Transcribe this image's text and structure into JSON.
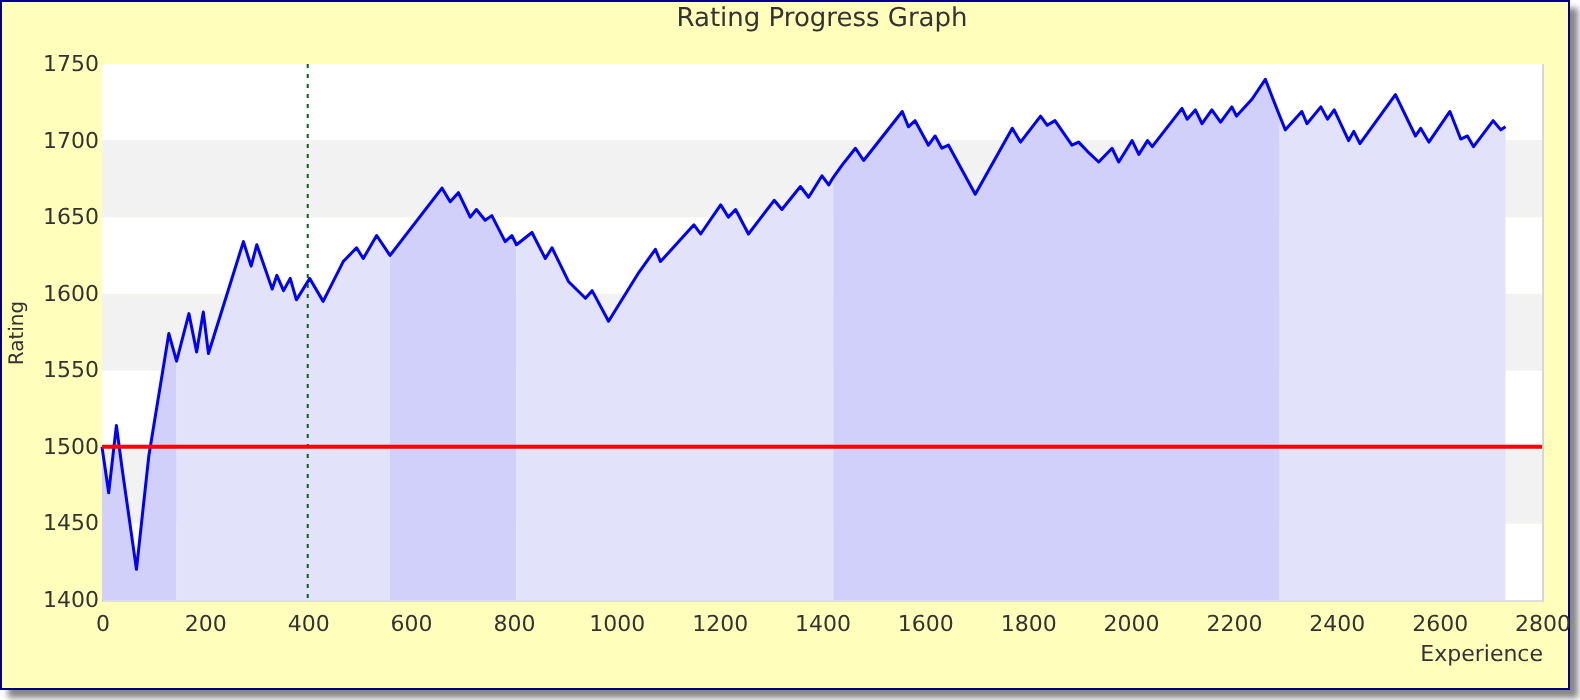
{
  "chart_data": {
    "type": "line",
    "title": "Rating Progress Graph",
    "xlabel": "Experience",
    "ylabel": "Rating",
    "xlim": [
      0,
      2800
    ],
    "xticks": [
      0,
      200,
      400,
      600,
      800,
      1000,
      1200,
      1400,
      1600,
      1800,
      2000,
      2200,
      2400,
      2600,
      2800
    ],
    "ylim": [
      1400,
      1750
    ],
    "yticks": [
      1400,
      1450,
      1500,
      1550,
      1600,
      1650,
      1700,
      1750
    ],
    "grid": "y",
    "series": [
      {
        "type": "area",
        "color": "#d0d0fa",
        "x": [
          0,
          13,
          28,
          39,
          67,
          91,
          130,
          145
        ],
        "values": [
          1500,
          1470,
          1514,
          1486,
          1420,
          1494,
          1574,
          1556
        ]
      },
      {
        "type": "area",
        "color": "#e2e2fa",
        "x": [
          145,
          169,
          184,
          197,
          207,
          275,
          290,
          301,
          331,
          340,
          353,
          366,
          378,
          404,
          430,
          469,
          495,
          508,
          534,
          560
        ],
        "values": [
          1556,
          1587,
          1562,
          1588,
          1561,
          1634,
          1618,
          1632,
          1603,
          1612,
          1602,
          1610,
          1596,
          1610,
          1595,
          1621,
          1630,
          1623,
          1638,
          1625
        ]
      },
      {
        "type": "area",
        "color": "#d0d0fa",
        "x": [
          560,
          661,
          677,
          693,
          716,
          728,
          745,
          758,
          784,
          797,
          806
        ],
        "values": [
          1625,
          1669,
          1660,
          1666,
          1650,
          1655,
          1648,
          1651,
          1634,
          1638,
          1632
        ]
      },
      {
        "type": "area",
        "color": "#e2e2fa",
        "x": [
          806,
          836,
          862,
          875,
          907,
          940,
          953,
          985,
          1044,
          1076,
          1086,
          1151,
          1164,
          1203,
          1218,
          1232,
          1257,
          1307,
          1322,
          1358,
          1374,
          1400,
          1413,
          1422
        ],
        "values": [
          1632,
          1640,
          1623,
          1630,
          1608,
          1597,
          1602,
          1582,
          1614,
          1629,
          1621,
          1645,
          1639,
          1658,
          1650,
          1655,
          1639,
          1661,
          1655,
          1670,
          1663,
          1677,
          1671,
          1676
        ]
      },
      {
        "type": "area",
        "color": "#d0d0fa",
        "x": [
          1422,
          1439,
          1465,
          1481,
          1556,
          1568,
          1581,
          1607,
          1620,
          1633,
          1646,
          1698,
          1770,
          1786,
          1825,
          1838,
          1853,
          1886,
          1899,
          1916,
          1938,
          1964,
          1977,
          2003,
          2016,
          2033,
          2042,
          2100,
          2110,
          2126,
          2139,
          2158,
          2175,
          2197,
          2206,
          2236,
          2262,
          2290
        ],
        "values": [
          1676,
          1684,
          1695,
          1687,
          1719,
          1709,
          1713,
          1697,
          1703,
          1695,
          1697,
          1665,
          1708,
          1699,
          1716,
          1710,
          1713,
          1697,
          1699,
          1693,
          1686,
          1695,
          1686,
          1700,
          1691,
          1700,
          1696,
          1721,
          1714,
          1720,
          1711,
          1720,
          1712,
          1722,
          1716,
          1727,
          1740,
          1716
        ]
      },
      {
        "type": "area",
        "color": "#e2e2fa",
        "x": [
          2290,
          2301,
          2333,
          2343,
          2370,
          2383,
          2396,
          2424,
          2434,
          2446,
          2515,
          2554,
          2564,
          2580,
          2621,
          2642,
          2655,
          2667,
          2705,
          2720,
          2729
        ],
        "values": [
          1716,
          1707,
          1719,
          1711,
          1722,
          1714,
          1720,
          1700,
          1706,
          1698,
          1730,
          1703,
          1708,
          1699,
          1719,
          1701,
          1703,
          1696,
          1713,
          1707,
          1709
        ]
      },
      {
        "color": "#0000ff",
        "x": [
          0,
          13,
          28,
          39,
          67,
          91,
          130,
          145,
          169,
          184,
          197,
          207,
          275,
          290,
          301,
          331,
          340,
          353,
          366,
          378,
          404,
          430,
          469,
          495,
          508,
          534,
          560,
          661,
          677,
          693,
          716,
          728,
          745,
          758,
          784,
          797,
          806,
          836,
          862,
          875,
          907,
          940,
          953,
          985,
          1044,
          1076,
          1086,
          1151,
          1164,
          1203,
          1218,
          1232,
          1257,
          1307,
          1322,
          1358,
          1374,
          1400,
          1413,
          1422,
          1439,
          1465,
          1481,
          1556,
          1568,
          1581,
          1607,
          1620,
          1633,
          1646,
          1698,
          1770,
          1786,
          1825,
          1838,
          1853,
          1886,
          1899,
          1916,
          1938,
          1964,
          1977,
          2003,
          2016,
          2033,
          2042,
          2100,
          2110,
          2126,
          2139,
          2158,
          2175,
          2197,
          2206,
          2236,
          2262,
          2290,
          2301,
          2333,
          2343,
          2370,
          2383,
          2396,
          2424,
          2434,
          2446,
          2515,
          2554,
          2564,
          2580,
          2621,
          2642,
          2655,
          2667,
          2705,
          2720,
          2729
        ],
        "values": [
          1500,
          1470,
          1514,
          1486,
          1420,
          1494,
          1574,
          1556,
          1587,
          1562,
          1588,
          1561,
          1634,
          1618,
          1632,
          1603,
          1612,
          1602,
          1610,
          1596,
          1610,
          1595,
          1621,
          1630,
          1623,
          1638,
          1625,
          1669,
          1660,
          1666,
          1650,
          1655,
          1648,
          1651,
          1634,
          1638,
          1632,
          1640,
          1623,
          1630,
          1608,
          1597,
          1602,
          1582,
          1614,
          1629,
          1621,
          1645,
          1639,
          1658,
          1650,
          1655,
          1639,
          1661,
          1655,
          1670,
          1663,
          1677,
          1671,
          1676,
          1684,
          1695,
          1687,
          1719,
          1709,
          1713,
          1697,
          1703,
          1695,
          1697,
          1665,
          1708,
          1699,
          1716,
          1710,
          1713,
          1697,
          1699,
          1693,
          1686,
          1695,
          1686,
          1700,
          1691,
          1700,
          1696,
          1721,
          1714,
          1720,
          1711,
          1720,
          1712,
          1722,
          1716,
          1727,
          1740,
          1716,
          1707,
          1719,
          1711,
          1722,
          1714,
          1720,
          1700,
          1706,
          1698,
          1730,
          1703,
          1708,
          1699,
          1719,
          1701,
          1703,
          1696,
          1713,
          1707,
          1709
        ]
      }
    ],
    "ref_lines": [
      {
        "axis": "x",
        "value": 400,
        "color": "#006400",
        "line_style": "dotted"
      },
      {
        "axis": "y",
        "value": 1500,
        "color": "#ff0000",
        "line_style": "solid"
      }
    ]
  }
}
